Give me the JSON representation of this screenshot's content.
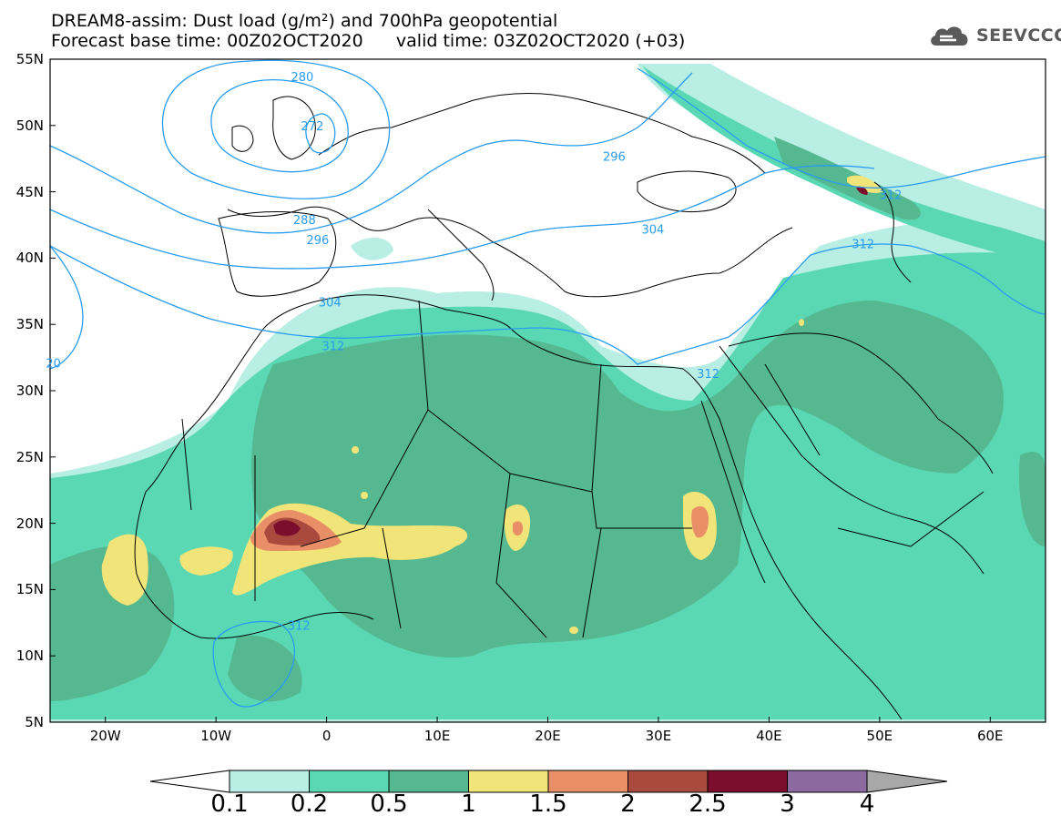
{
  "title_line1": "DREAM8-assim: Dust load (g/m²) and 700hPa geopotential",
  "title_line2": "Forecast base time: 00Z02OCT2020      valid time: 03Z02OCT2020 (+03)",
  "logo_text": "SEEVCCC",
  "lat_labels": [
    "55N",
    "50N",
    "45N",
    "40N",
    "35N",
    "30N",
    "25N",
    "20N",
    "15N",
    "10N",
    "5N"
  ],
  "lon_labels": [
    "20W",
    "10W",
    "0",
    "10E",
    "20E",
    "30E",
    "40E",
    "50E",
    "60E"
  ],
  "colorbar_labels": [
    "0.1",
    "0.2",
    "0.5",
    "1",
    "1.5",
    "2",
    "2.5",
    "3",
    "4"
  ],
  "colorbar_colors": [
    "#b8eee4",
    "#5ad8b4",
    "#55b890",
    "#f1e478",
    "#e98f68",
    "#a94a3e",
    "#7c0e2d",
    "#8c6aa0"
  ],
  "contour_labels": [
    {
      "text": "280",
      "lon": -2.2,
      "lat": 53.7
    },
    {
      "text": "272",
      "lon": -1.3,
      "lat": 50.0
    },
    {
      "text": "288",
      "lon": -2.0,
      "lat": 42.9
    },
    {
      "text": "296",
      "lon": -0.8,
      "lat": 41.4
    },
    {
      "text": "296",
      "lon": 26.0,
      "lat": 47.7
    },
    {
      "text": "304",
      "lon": 0.3,
      "lat": 36.7
    },
    {
      "text": "304",
      "lon": 29.5,
      "lat": 42.2
    },
    {
      "text": "312",
      "lon": 0.6,
      "lat": 33.4
    },
    {
      "text": "312",
      "lon": 34.5,
      "lat": 31.3
    },
    {
      "text": "312",
      "lon": 48.5,
      "lat": 41.1
    },
    {
      "text": "312",
      "lon": 51.0,
      "lat": 44.8
    },
    {
      "text": "312",
      "lon": -2.5,
      "lat": 12.3
    },
    {
      "text": "20",
      "lon": -24.7,
      "lat": 32.1
    }
  ],
  "legend_colors": {
    "contour": "#2a9cf0",
    "coast": "#000000"
  }
}
